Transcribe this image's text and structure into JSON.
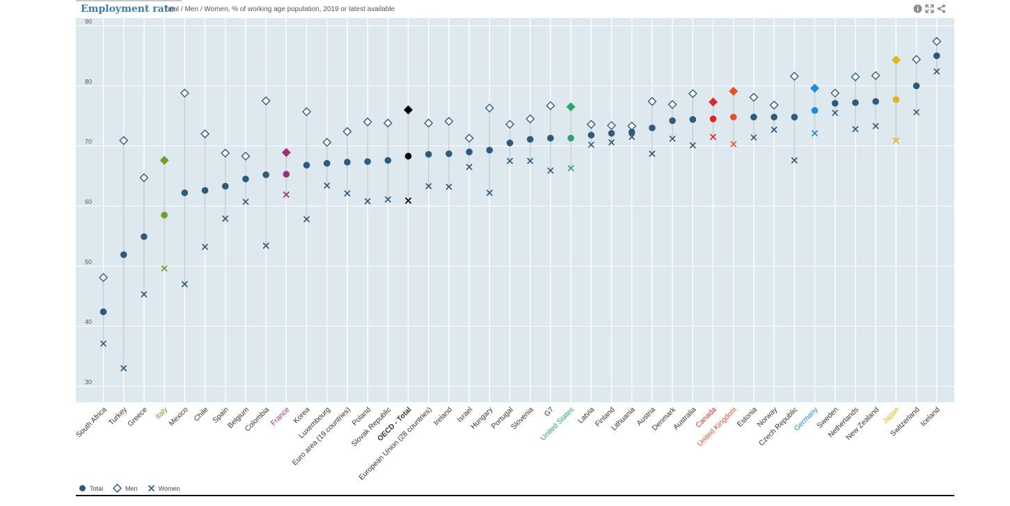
{
  "header": {
    "title": "Employment rate",
    "subtitle": "Total / Men / Women, % of working age population, 2019 or latest available",
    "tools": [
      "info-icon",
      "expand-icon",
      "share-icon"
    ]
  },
  "legend": {
    "total_label": "Total",
    "men_label": "Men",
    "women_label": "Women"
  },
  "colors": {
    "plot_bg": "#dde8ef",
    "default": "#2f5a7a",
    "Italy": "#6e9e2c",
    "France": "#9c2f7c",
    "OECD - Total": "#000000",
    "United States": "#2ea36b",
    "Canada": "#e0262d",
    "United Kingdom": "#e0542a",
    "Germany": "#1d8ed6",
    "Japan": "#e0b41c"
  },
  "chart_data": {
    "type": "scatter",
    "title": "Employment rate",
    "subtitle": "Total / Men / Women, % of working age population, 2019 or latest available",
    "ylim": [
      30,
      90
    ],
    "yticks": [
      30,
      40,
      50,
      60,
      70,
      80,
      90
    ],
    "grid": true,
    "legend_position": "bottom-left",
    "categories": [
      "South Africa",
      "Turkey",
      "Greece",
      "Italy",
      "Mexico",
      "Chile",
      "Spain",
      "Belgium",
      "Colombia",
      "France",
      "Korea",
      "Luxembourg",
      "Euro area (19 countries)",
      "Poland",
      "Slovak Republic",
      "OECD - Total",
      "European Union (28 countries)",
      "Ireland",
      "Israel",
      "Hungary",
      "Portugal",
      "Slovenia",
      "G7",
      "United States",
      "Latvia",
      "Finland",
      "Lithuania",
      "Austria",
      "Denmark",
      "Australia",
      "Canada",
      "United Kingdom",
      "Estonia",
      "Norway",
      "Czech Republic",
      "Germany",
      "Sweden",
      "Netherlands",
      "New Zealand",
      "Japan",
      "Switzerland",
      "Iceland"
    ],
    "highlighted": [
      "Italy",
      "France",
      "OECD - Total",
      "United States",
      "Canada",
      "United Kingdom",
      "Germany",
      "Japan"
    ],
    "series": [
      {
        "name": "Total",
        "marker": "circle",
        "values": [
          42.4,
          51.9,
          54.9,
          58.5,
          62.2,
          62.6,
          63.3,
          64.5,
          65.2,
          65.3,
          66.8,
          67.1,
          67.3,
          67.4,
          67.6,
          68.3,
          68.6,
          68.7,
          69.0,
          69.3,
          70.5,
          71.1,
          71.3,
          71.3,
          71.8,
          72.1,
          72.3,
          73.0,
          74.2,
          74.4,
          74.5,
          74.8,
          74.8,
          74.8,
          74.8,
          75.9,
          77.1,
          77.2,
          77.4,
          77.7,
          80.0,
          85.0
        ]
      },
      {
        "name": "Men",
        "marker": "diamond",
        "values": [
          48.1,
          70.9,
          64.7,
          67.6,
          78.8,
          72.0,
          68.8,
          68.3,
          77.5,
          68.9,
          75.7,
          70.6,
          72.4,
          74.0,
          73.8,
          76.0,
          73.8,
          74.1,
          71.3,
          76.3,
          73.6,
          74.5,
          76.7,
          76.5,
          73.6,
          73.4,
          73.3,
          77.4,
          76.9,
          78.7,
          77.3,
          79.1,
          78.1,
          76.8,
          81.6,
          79.6,
          78.8,
          81.5,
          81.7,
          84.3,
          84.4,
          87.4
        ]
      },
      {
        "name": "Women",
        "marker": "x",
        "values": [
          37.1,
          33.0,
          45.3,
          49.6,
          47.0,
          53.2,
          57.9,
          60.7,
          53.4,
          61.9,
          57.8,
          63.4,
          62.1,
          60.8,
          61.1,
          60.9,
          63.3,
          63.2,
          66.5,
          62.2,
          67.5,
          67.5,
          65.9,
          66.3,
          70.2,
          70.6,
          71.5,
          68.7,
          71.2,
          70.1,
          71.5,
          70.3,
          71.4,
          72.7,
          67.6,
          72.1,
          75.5,
          72.8,
          73.3,
          70.9,
          75.6,
          82.4
        ]
      }
    ]
  }
}
